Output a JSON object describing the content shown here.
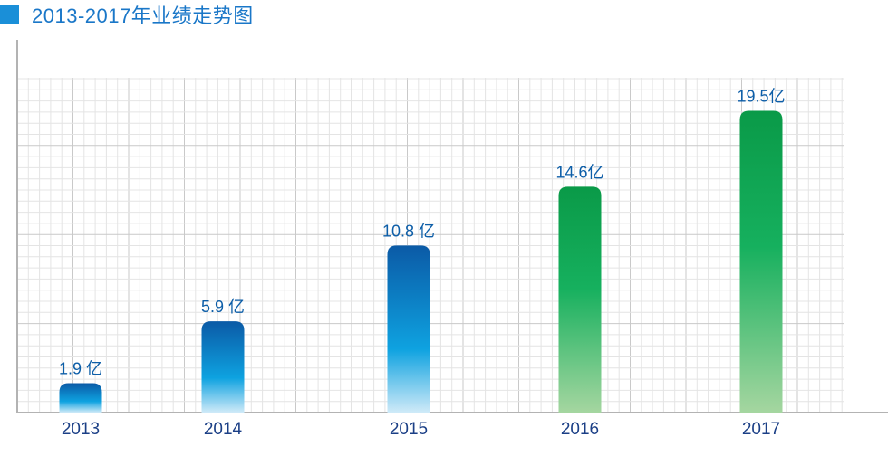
{
  "chart_data": {
    "type": "bar",
    "title": "2013-2017年业绩走势图",
    "categories": [
      "2013",
      "2014",
      "2015",
      "2016",
      "2017"
    ],
    "values": [
      1.9,
      5.9,
      10.8,
      14.6,
      19.5
    ],
    "data_labels": [
      "1.9 亿",
      "5.9 亿",
      "10.8 亿",
      "14.6亿",
      "19.5亿"
    ],
    "unit": "亿",
    "xlabel": "",
    "ylabel": "",
    "ylim": [
      0,
      20
    ],
    "grid": true,
    "legend": "none",
    "colors": {
      "title_marker": "#1a8fd8",
      "title_text": "#1a77c8",
      "blue_top": "#0b5aa6",
      "blue_mid": "#0ea2e0",
      "blue_bottom": "#cfeaf8",
      "green_top": "#0a9a48",
      "green_mid": "#16b05e",
      "green_bottom": "#a5d6a0",
      "grid_minor": "#e4e4e4",
      "grid_major": "#c9c9c9",
      "axis": "#b3b3b3"
    },
    "bar_color_groups": [
      "blue",
      "blue",
      "blue",
      "green",
      "green"
    ]
  }
}
